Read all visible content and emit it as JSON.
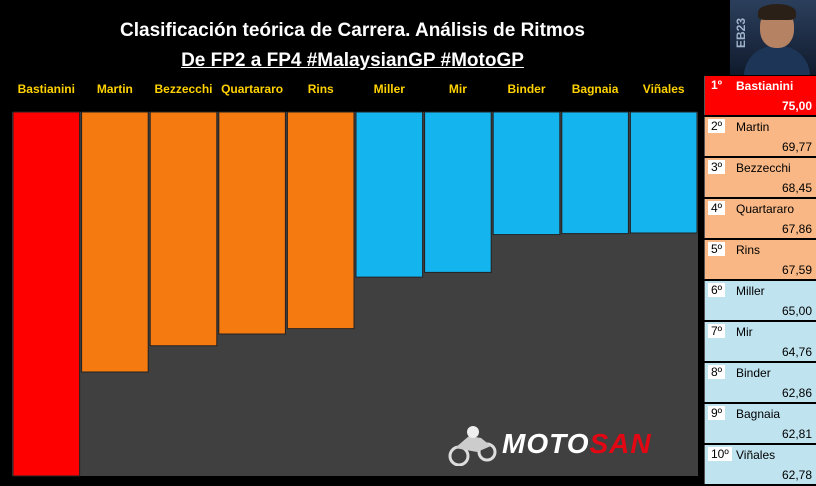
{
  "title": "Clasificación teórica de Carrera. Análisis de Ritmos",
  "subtitle": "De FP2 a FP4 #MalaysianGP #MotoGP",
  "chart_data": {
    "type": "bar",
    "categories": [
      "Bastianini",
      "Martin",
      "Bezzecchi",
      "Quartararo",
      "Rins",
      "Miller",
      "Mir",
      "Binder",
      "Bagnaia",
      "Viñales"
    ],
    "values": [
      75.0,
      69.77,
      68.45,
      67.86,
      67.59,
      65.0,
      64.76,
      62.86,
      62.81,
      62.78
    ],
    "bar_colors": [
      "#ff0000",
      "#f57a10",
      "#f57a10",
      "#f57a10",
      "#f57a10",
      "#14b4ee",
      "#14b4ee",
      "#14b4ee",
      "#14b4ee",
      "#14b4ee"
    ],
    "label_color": "#ffd200",
    "legend": "none",
    "grid": false
  },
  "ranking": [
    {
      "pos": "1º",
      "name": "Bastianini",
      "value": "75,00",
      "color": "#ff0000"
    },
    {
      "pos": "2º",
      "name": "Martin",
      "value": "69,77",
      "color": "#f8b785"
    },
    {
      "pos": "3º",
      "name": "Bezzecchi",
      "value": "68,45",
      "color": "#f8b785"
    },
    {
      "pos": "4º",
      "name": "Quartararo",
      "value": "67,86",
      "color": "#f8b785"
    },
    {
      "pos": "5º",
      "name": "Rins",
      "value": "67,59",
      "color": "#f8b785"
    },
    {
      "pos": "6º",
      "name": "Miller",
      "value": "65,00",
      "color": "#bfe3ef"
    },
    {
      "pos": "7º",
      "name": "Mir",
      "value": "64,76",
      "color": "#bfe3ef"
    },
    {
      "pos": "8º",
      "name": "Binder",
      "value": "62,86",
      "color": "#bfe3ef"
    },
    {
      "pos": "9º",
      "name": "Bagnaia",
      "value": "62,81",
      "color": "#bfe3ef"
    },
    {
      "pos": "10º",
      "name": "Viñales",
      "value": "62,78",
      "color": "#bfe3ef"
    }
  ],
  "photo": {
    "number": "EB23"
  },
  "logo": {
    "part1": "MOTO",
    "part2": "SAN"
  },
  "colors": {
    "background": "#000000",
    "plot_area": "#404040",
    "accent": "#e30613"
  }
}
